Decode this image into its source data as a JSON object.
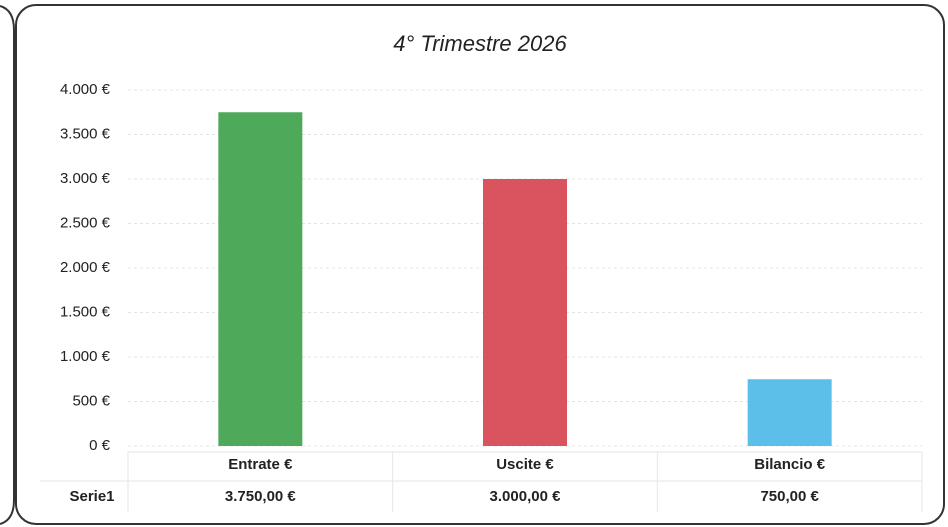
{
  "chart_data": {
    "type": "bar",
    "title": "4° Trimestre 2026",
    "categories": [
      "Entrate €",
      "Uscite €",
      "Bilancio €"
    ],
    "series": [
      {
        "name": "Serie1",
        "values": [
          3750,
          3000,
          750
        ],
        "value_labels": [
          "3.750,00 €",
          "3.000,00 €",
          "750,00 €"
        ]
      }
    ],
    "colors": [
      "#4ea95a",
      "#d9545f",
      "#5cbfea"
    ],
    "ylim": [
      0,
      4000
    ],
    "yticks": [
      {
        "value": 0,
        "label": "0 €"
      },
      {
        "value": 500,
        "label": "500 €"
      },
      {
        "value": 1000,
        "label": "1.000 €"
      },
      {
        "value": 1500,
        "label": "1.500 €"
      },
      {
        "value": 2000,
        "label": "2.000 €"
      },
      {
        "value": 2500,
        "label": "2.500 €"
      },
      {
        "value": 3000,
        "label": "3.000 €"
      },
      {
        "value": 3500,
        "label": "3.500 €"
      },
      {
        "value": 4000,
        "label": "4.000 €"
      }
    ],
    "grid": true
  }
}
